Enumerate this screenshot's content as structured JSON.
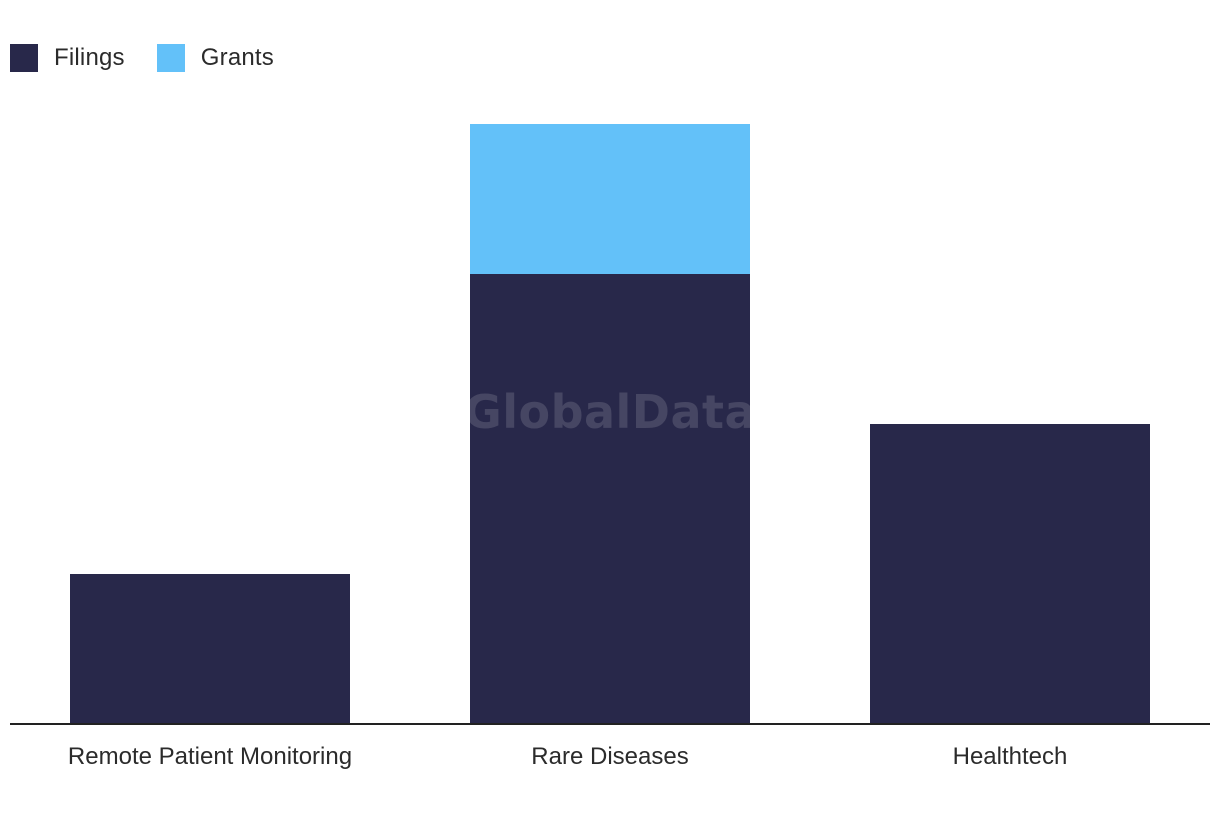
{
  "legend": {
    "filings_label": "Filings",
    "grants_label": "Grants"
  },
  "colors": {
    "filings": "#28284a",
    "grants": "#63c1f9",
    "axis": "#222222"
  },
  "watermark": "GlobalData",
  "chart_data": {
    "type": "bar",
    "stacked": true,
    "title": "",
    "xlabel": "",
    "ylabel": "",
    "categories": [
      "Remote Patient Monitoring",
      "Rare Diseases",
      "Healthtech"
    ],
    "series": [
      {
        "name": "Filings",
        "values": [
          1,
          3,
          2
        ]
      },
      {
        "name": "Grants",
        "values": [
          0,
          1,
          0
        ]
      }
    ],
    "ylim": [
      0,
      4
    ],
    "grid": false,
    "legend_position": "top-left"
  }
}
